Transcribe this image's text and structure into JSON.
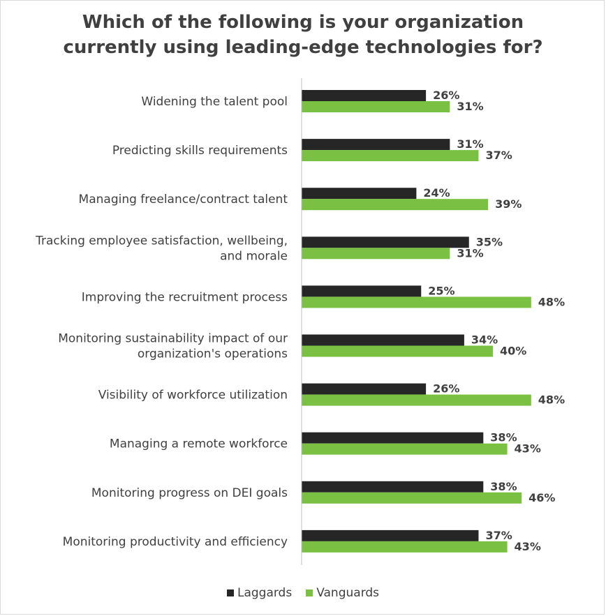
{
  "chart_data": {
    "type": "bar",
    "orientation": "horizontal",
    "title": "Which of the following is your organization currently using leading-edge technologies for?",
    "title_lines": [
      "Which of the following is your organization",
      "currently using leading-edge technologies for?"
    ],
    "categories": [
      [
        "Widening the talent pool"
      ],
      [
        "Predicting skills requirements"
      ],
      [
        "Managing freelance/contract talent"
      ],
      [
        "Tracking employee satisfaction, wellbeing,",
        "and morale"
      ],
      [
        "Improving the recruitment process"
      ],
      [
        "Monitoring sustainability impact of our",
        "organization's operations"
      ],
      [
        "Visibility of workforce utilization"
      ],
      [
        "Managing a remote workforce"
      ],
      [
        "Monitoring progress on DEI goals"
      ],
      [
        "Monitoring productivity and efficiency"
      ]
    ],
    "series": [
      {
        "name": "Laggards",
        "color": "#262626",
        "values": [
          26,
          31,
          24,
          35,
          25,
          34,
          26,
          38,
          38,
          37
        ]
      },
      {
        "name": "Vanguards",
        "color": "#7ac143",
        "values": [
          31,
          37,
          39,
          31,
          48,
          40,
          48,
          43,
          46,
          43
        ]
      }
    ],
    "value_suffix": "%",
    "xlim": [
      0,
      60
    ],
    "grid": false,
    "legend_position": "bottom"
  }
}
